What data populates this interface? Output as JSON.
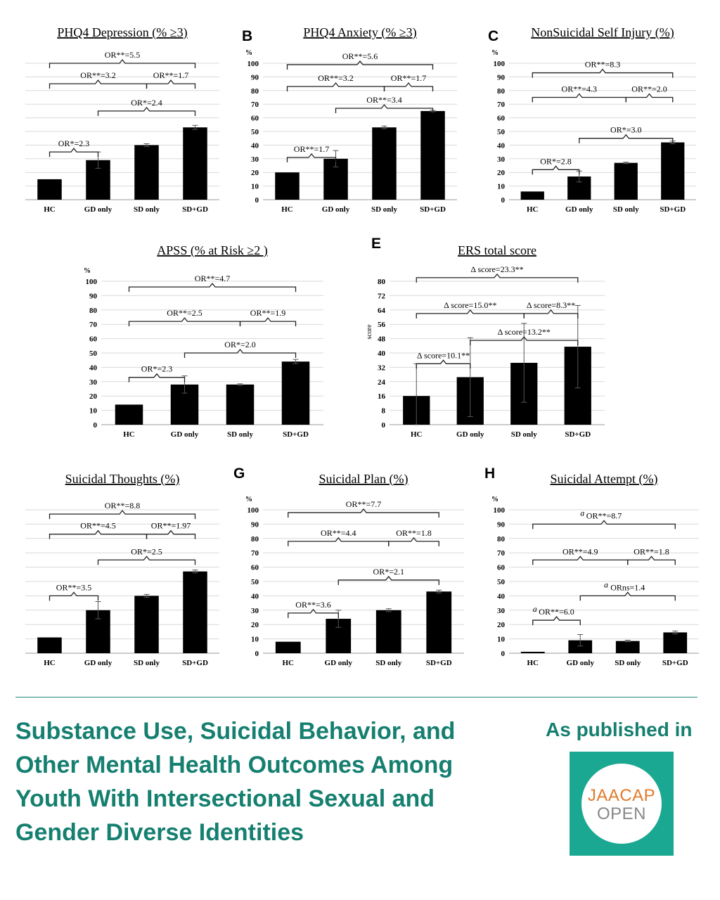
{
  "chart_data": [
    {
      "id": "A",
      "panel_letter": "",
      "type": "bar",
      "title": "PHQ4 Depression (% ≥3)",
      "y_unit_label": "",
      "show_y_ticks": false,
      "categories": [
        "HC",
        "GD only",
        "SD only",
        "SD+GD"
      ],
      "values": [
        15,
        29,
        40,
        53
      ],
      "errors": [
        0,
        6,
        1,
        1.5
      ],
      "ylim": [
        0,
        100
      ],
      "brackets": [
        {
          "from": 0,
          "to": 3,
          "level": 100,
          "label": "OR**=5.5"
        },
        {
          "from": 0,
          "to": 2,
          "level": 85,
          "label": "OR**=3.2"
        },
        {
          "from": 2,
          "to": 3,
          "level": 85,
          "label": "OR**=1.7"
        },
        {
          "from": 1,
          "to": 3,
          "level": 65,
          "label": "OR*=2.4"
        },
        {
          "from": 0,
          "to": 1,
          "level": 35,
          "label": "OR*=2.3"
        }
      ]
    },
    {
      "id": "B",
      "panel_letter": "B",
      "type": "bar",
      "title": "PHQ4 Anxiety (% ≥3)",
      "y_unit_label": "%",
      "show_y_ticks": true,
      "categories": [
        "HC",
        "GD only",
        "SD only",
        "SD+GD"
      ],
      "values": [
        20,
        30,
        53,
        65
      ],
      "errors": [
        0,
        6,
        1,
        0.5
      ],
      "ylim": [
        0,
        100
      ],
      "brackets": [
        {
          "from": 0,
          "to": 3,
          "level": 99,
          "label": "OR**=5.6"
        },
        {
          "from": 0,
          "to": 2,
          "level": 83,
          "label": "OR**=3.2"
        },
        {
          "from": 2,
          "to": 3,
          "level": 83,
          "label": "OR**=1.7"
        },
        {
          "from": 1,
          "to": 3,
          "level": 67,
          "label": "OR**=3.4"
        },
        {
          "from": 0,
          "to": 1,
          "level": 31,
          "label": "OR**=1.7"
        }
      ]
    },
    {
      "id": "C",
      "panel_letter": "C",
      "type": "bar",
      "title": "NonSuicidal Self Injury (%)",
      "y_unit_label": "%",
      "show_y_ticks": true,
      "categories": [
        "HC",
        "GD only",
        "SD only",
        "SD+GD"
      ],
      "values": [
        6,
        17,
        27,
        42
      ],
      "errors": [
        0,
        4,
        0.5,
        1
      ],
      "ylim": [
        0,
        100
      ],
      "brackets": [
        {
          "from": 0,
          "to": 3,
          "level": 93,
          "label": "OR**=8.3"
        },
        {
          "from": 0,
          "to": 2,
          "level": 75,
          "label": "OR**=4.3"
        },
        {
          "from": 2,
          "to": 3,
          "level": 75,
          "label": "OR**=2.0"
        },
        {
          "from": 1,
          "to": 3,
          "level": 45,
          "label": "OR*=3.0"
        },
        {
          "from": 0,
          "to": 1,
          "level": 22,
          "label": "OR*=2.8"
        }
      ]
    },
    {
      "id": "D",
      "panel_letter": "",
      "type": "bar",
      "title": "APSS (% at Risk ≥2 )",
      "y_unit_label": "%",
      "show_y_ticks": true,
      "categories": [
        "HC",
        "GD only",
        "SD only",
        "SD+GD"
      ],
      "values": [
        14,
        28,
        28,
        44
      ],
      "errors": [
        0,
        6,
        0.5,
        1.5
      ],
      "ylim": [
        0,
        100
      ],
      "brackets": [
        {
          "from": 0,
          "to": 3,
          "level": 96,
          "label": "OR**=4.7"
        },
        {
          "from": 0,
          "to": 2,
          "level": 72,
          "label": "OR**=2.5"
        },
        {
          "from": 2,
          "to": 3,
          "level": 72,
          "label": "OR**=1.9"
        },
        {
          "from": 1,
          "to": 3,
          "level": 50,
          "label": "OR*=2.0"
        },
        {
          "from": 0,
          "to": 1,
          "level": 33,
          "label": "OR*=2.3"
        }
      ]
    },
    {
      "id": "E",
      "panel_letter": "E",
      "type": "bar",
      "title": "ERS total score",
      "y_unit_label": "score",
      "show_y_ticks": true,
      "categories": [
        "HC",
        "GD only",
        "SD only",
        "SD+GD"
      ],
      "values": [
        16,
        26.5,
        34.5,
        43.5
      ],
      "errors": [
        18,
        22,
        22,
        23
      ],
      "ylim": [
        0,
        80
      ],
      "brackets": [
        {
          "from": 0,
          "to": 3,
          "level": 82,
          "label": "Δ score=23.3**"
        },
        {
          "from": 0,
          "to": 2,
          "level": 62,
          "label": "Δ score=15.0**"
        },
        {
          "from": 2,
          "to": 3,
          "level": 62,
          "label": "Δ score=8.3**"
        },
        {
          "from": 1,
          "to": 3,
          "level": 47,
          "label": "Δ score=13.2**"
        },
        {
          "from": 0,
          "to": 1,
          "level": 34,
          "label": "Δ score=10.1**"
        }
      ]
    },
    {
      "id": "F",
      "panel_letter": "",
      "type": "bar",
      "title": "Suicidal Thoughts (%)",
      "y_unit_label": "",
      "show_y_ticks": false,
      "categories": [
        "HC",
        "GD only",
        "SD only",
        "SD+GD"
      ],
      "values": [
        11,
        30,
        40,
        57
      ],
      "errors": [
        0,
        6,
        1,
        1
      ],
      "ylim": [
        0,
        100
      ],
      "brackets": [
        {
          "from": 0,
          "to": 3,
          "level": 97,
          "label": "OR**=8.8"
        },
        {
          "from": 0,
          "to": 2,
          "level": 83,
          "label": "OR**=4.5"
        },
        {
          "from": 2,
          "to": 3,
          "level": 83,
          "label": "OR**=1.97"
        },
        {
          "from": 1,
          "to": 3,
          "level": 65,
          "label": "OR*=2.5"
        },
        {
          "from": 0,
          "to": 1,
          "level": 40,
          "label": "OR**=3.5"
        }
      ]
    },
    {
      "id": "G",
      "panel_letter": "G",
      "type": "bar",
      "title": "Suicidal Plan (%)",
      "y_unit_label": "%",
      "show_y_ticks": true,
      "categories": [
        "HC",
        "GD only",
        "SD only",
        "SD+GD"
      ],
      "values": [
        8,
        24,
        30,
        43
      ],
      "errors": [
        0,
        6,
        1,
        1
      ],
      "ylim": [
        0,
        100
      ],
      "brackets": [
        {
          "from": 0,
          "to": 3,
          "level": 98,
          "label": "OR**=7.7"
        },
        {
          "from": 0,
          "to": 2,
          "level": 78,
          "label": "OR**=4.4"
        },
        {
          "from": 2,
          "to": 3,
          "level": 78,
          "label": "OR**=1.8"
        },
        {
          "from": 1,
          "to": 3,
          "level": 51,
          "label": "OR*=2.1"
        },
        {
          "from": 0,
          "to": 1,
          "level": 28,
          "label": "OR**=3.6"
        }
      ]
    },
    {
      "id": "H",
      "panel_letter": "H",
      "type": "bar",
      "title": "Suicidal Attempt (%)",
      "y_unit_label": "%",
      "show_y_ticks": true,
      "categories": [
        "HC",
        "GD only",
        "SD only",
        "SD+GD"
      ],
      "values": [
        1,
        9,
        8.5,
        14.5
      ],
      "errors": [
        0,
        4,
        0.5,
        1
      ],
      "ylim": [
        0,
        100
      ],
      "brackets": [
        {
          "from": 0,
          "to": 3,
          "level": 90,
          "label": "OR**=8.7",
          "prefix": "a"
        },
        {
          "from": 0,
          "to": 2,
          "level": 65,
          "label": "OR**=4.9"
        },
        {
          "from": 2,
          "to": 3,
          "level": 65,
          "label": "OR**=1.8"
        },
        {
          "from": 1,
          "to": 3,
          "level": 40,
          "label": "ORns=1.4",
          "prefix": "a"
        },
        {
          "from": 0,
          "to": 1,
          "level": 23,
          "label": "OR**=6.0",
          "prefix": "a"
        }
      ]
    }
  ],
  "footer": {
    "headline": "Substance Use, Suicidal Behavior, and Other Mental Health Outcomes Among Youth With Intersectional Sexual and Gender Diverse Identities",
    "published_label": "As published in",
    "logo_line1": "JAACAP",
    "logo_line2": "OPEN"
  },
  "colors": {
    "accent": "#157f70",
    "logo_bg": "#1ba892",
    "logo_orange": "#e07a2b",
    "bar": "#000000"
  }
}
